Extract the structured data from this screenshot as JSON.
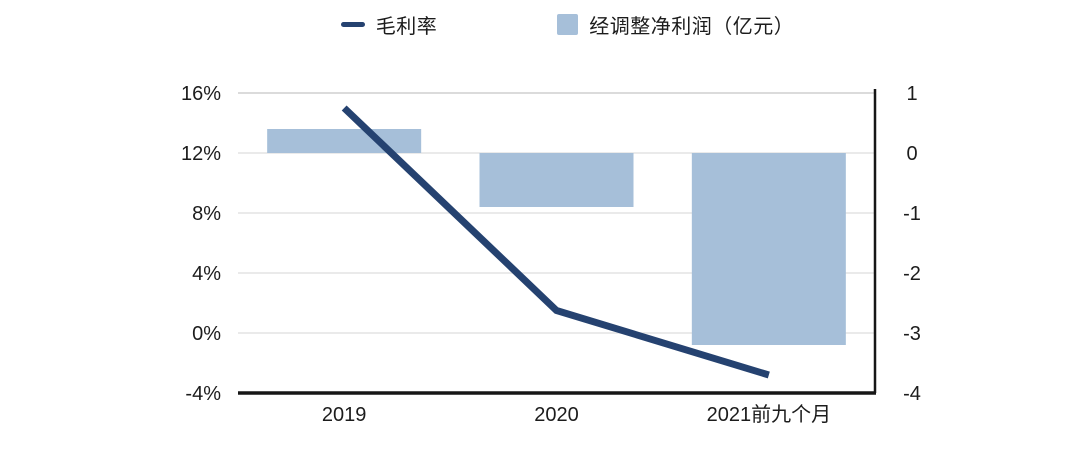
{
  "legend": {
    "items": [
      {
        "label": "毛利率",
        "marker": "line-dash"
      },
      {
        "label": "经调整净利润（亿元）",
        "marker": "square"
      }
    ]
  },
  "chart_data": {
    "type": "combo-bar-line",
    "title": "",
    "categories": [
      "2019",
      "2020",
      "2021前九个月"
    ],
    "series": [
      {
        "name": "毛利率",
        "type": "line",
        "axis": "left",
        "unit": "%",
        "values": [
          15.0,
          1.5,
          -2.8
        ],
        "color": "#254270"
      },
      {
        "name": "经调整净利润（亿元）",
        "type": "bar",
        "axis": "right",
        "unit": "亿元",
        "values": [
          0.4,
          -0.9,
          -3.2
        ],
        "color": "#a6bfd9"
      }
    ],
    "left_axis": {
      "unit": "%",
      "tick_labels": [
        "16%",
        "12%",
        "8%",
        "4%",
        "0%",
        "-4%"
      ],
      "tick_values": [
        16,
        12,
        8,
        4,
        0,
        -4
      ],
      "range": [
        -4,
        16
      ]
    },
    "right_axis": {
      "tick_labels": [
        "1",
        "0",
        "-1",
        "-2",
        "-3",
        "-4"
      ],
      "tick_values": [
        1,
        0,
        -1,
        -2,
        -3,
        -4
      ],
      "range": [
        -4,
        1
      ]
    },
    "grid": true,
    "legend_position": "top-center",
    "background": "#ffffff",
    "text_color": "#1c1c1c",
    "gridline_color": "#e4e4e4",
    "top_gridline_color": "#cfcfcf",
    "axis_line_color": "#161616"
  }
}
